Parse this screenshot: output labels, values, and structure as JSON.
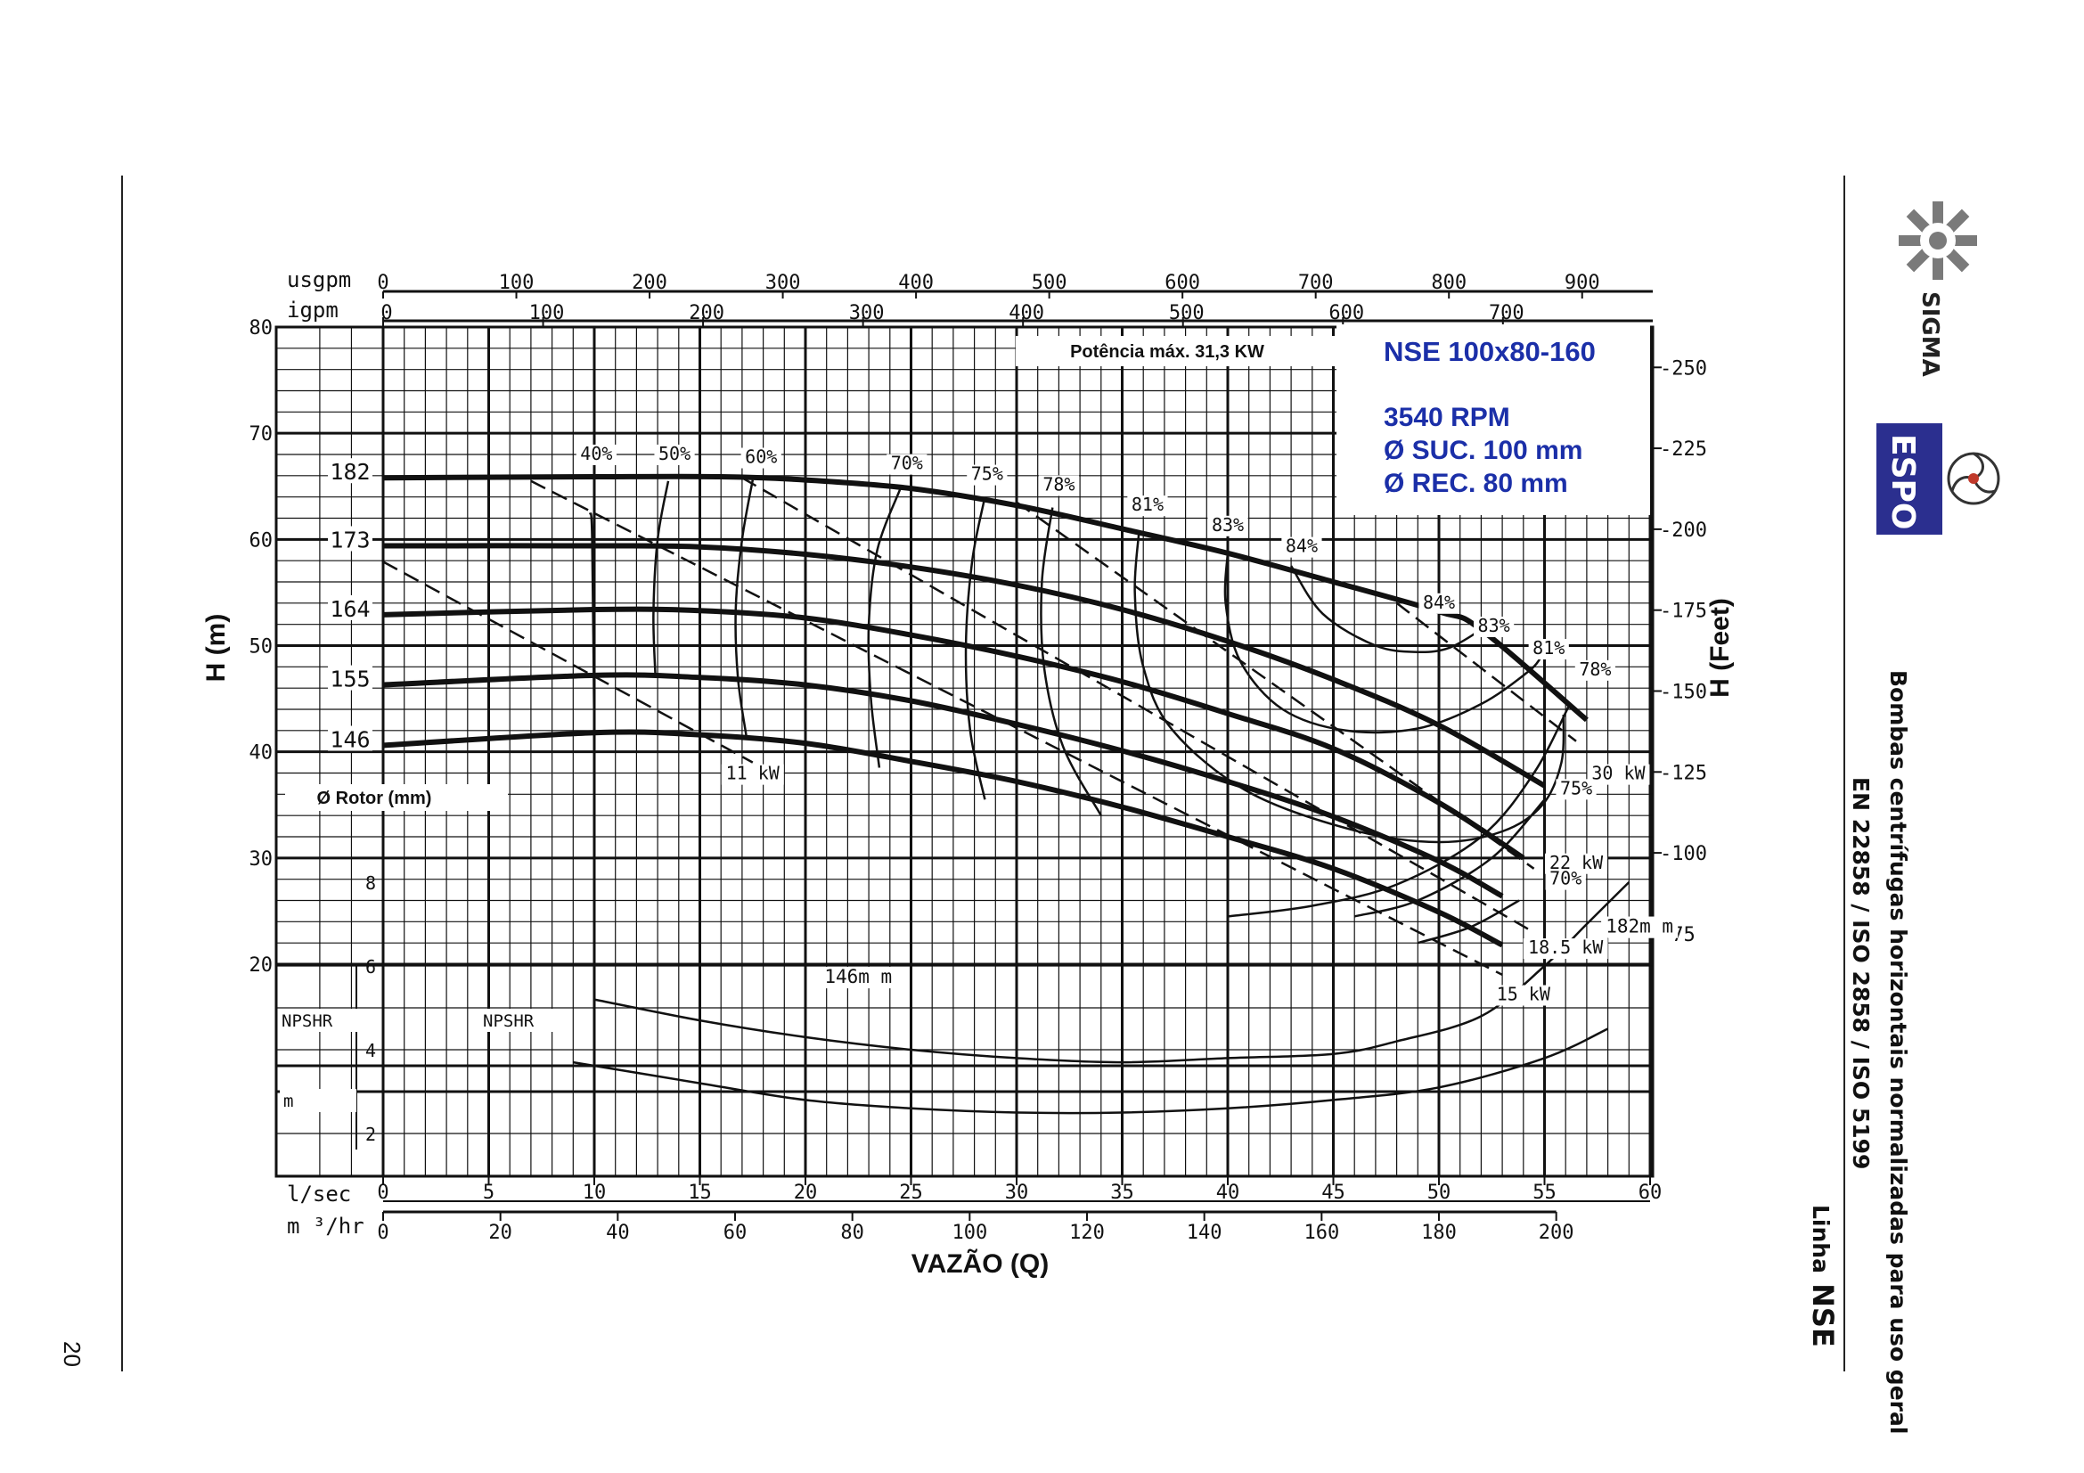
{
  "page": {
    "number": "20"
  },
  "side_text": {
    "line1": "Bombas centrífugas horizontais normalizadas para uso geral",
    "line2": "EN 22858 / ISO 2858 / ISO 5199",
    "line3_prefix": "Linha",
    "line3_model": "NSE"
  },
  "logos": {
    "sigma": "SIGMA",
    "espo": "ESPO"
  },
  "info": {
    "model": "NSE 100x80-160",
    "rpm": "3540 RPM",
    "suction": "Ø SUC. 100 mm",
    "discharge": "Ø REC. 80 mm",
    "max_power": "Potência máx. 31,3 KW",
    "rotor_label": "Ø Rotor (mm)",
    "npshr_label": "NPSHR",
    "npshr_unit": "m",
    "color": "#1b2fa8"
  },
  "chart_data": {
    "type": "line",
    "title": "NSE 100x80-160",
    "xlabel": "VAZÃO (Q)",
    "ylabel_left": "H (m)",
    "ylabel_right": "H (Feet)",
    "x_primary": {
      "unit": "l/sec",
      "range": [
        0,
        60
      ],
      "ticks": [
        "0",
        "5",
        "10",
        "15",
        "20",
        "25",
        "30",
        "35",
        "40",
        "45",
        "50",
        "55",
        "60"
      ]
    },
    "x_m3hr": {
      "unit": "m ³/hr",
      "ticks": [
        "0",
        "20",
        "40",
        "60",
        "80",
        "100",
        "120",
        "140",
        "160",
        "180",
        "200"
      ]
    },
    "x_usgpm": {
      "unit": "usgpm",
      "ticks": [
        "0",
        "100",
        "200",
        "300",
        "400",
        "500",
        "600",
        "700",
        "800",
        "900"
      ]
    },
    "x_igpm": {
      "unit": "igpm",
      "ticks": [
        "0",
        "100",
        "200",
        "300",
        "400",
        "500",
        "600",
        "700"
      ]
    },
    "y_left": {
      "range": [
        20,
        80
      ],
      "ticks": [
        "20",
        "30",
        "40",
        "50",
        "60",
        "70",
        "80"
      ]
    },
    "y_feet": {
      "ticks": [
        "75",
        "100",
        "125",
        "150",
        "175",
        "200",
        "225",
        "250"
      ]
    },
    "npsh_axis": {
      "ticks": [
        "2",
        "4",
        "6",
        "8"
      ]
    },
    "head_series": [
      {
        "name": "182",
        "points": [
          [
            0,
            65.8
          ],
          [
            10,
            65.9
          ],
          [
            16,
            65.9
          ],
          [
            20,
            65.6
          ],
          [
            25,
            64.8
          ],
          [
            30,
            63.2
          ],
          [
            35,
            61.0
          ],
          [
            40,
            58.7
          ],
          [
            45,
            56.0
          ],
          [
            50,
            53.2
          ],
          [
            52,
            51.5
          ],
          [
            57,
            43.0
          ]
        ]
      },
      {
        "name": "173",
        "points": [
          [
            0,
            59.4
          ],
          [
            10,
            59.4
          ],
          [
            15,
            59.3
          ],
          [
            20,
            58.6
          ],
          [
            25,
            57.4
          ],
          [
            30,
            55.7
          ],
          [
            35,
            53.4
          ],
          [
            40,
            50.4
          ],
          [
            45,
            46.8
          ],
          [
            50,
            42.5
          ],
          [
            55,
            36.8
          ]
        ]
      },
      {
        "name": "164",
        "points": [
          [
            0,
            52.9
          ],
          [
            10,
            53.4
          ],
          [
            15,
            53.3
          ],
          [
            20,
            52.6
          ],
          [
            25,
            51.0
          ],
          [
            30,
            49.0
          ],
          [
            35,
            46.6
          ],
          [
            40,
            43.6
          ],
          [
            45,
            40.3
          ],
          [
            50,
            35.2
          ],
          [
            54,
            30.0
          ]
        ]
      },
      {
        "name": "155",
        "points": [
          [
            0,
            46.3
          ],
          [
            10,
            47.2
          ],
          [
            15,
            47.0
          ],
          [
            20,
            46.3
          ],
          [
            25,
            44.8
          ],
          [
            30,
            42.6
          ],
          [
            35,
            40.1
          ],
          [
            40,
            37.2
          ],
          [
            45,
            33.9
          ],
          [
            50,
            29.7
          ],
          [
            53,
            26.4
          ]
        ]
      },
      {
        "name": "146",
        "points": [
          [
            0,
            40.6
          ],
          [
            10,
            41.8
          ],
          [
            15,
            41.6
          ],
          [
            20,
            40.8
          ],
          [
            25,
            39.1
          ],
          [
            30,
            37.2
          ],
          [
            35,
            34.8
          ],
          [
            40,
            32.0
          ],
          [
            45,
            29.0
          ],
          [
            50,
            24.9
          ],
          [
            53,
            21.8
          ]
        ]
      }
    ],
    "power_lines": [
      {
        "name": "11 kW",
        "points": [
          [
            0,
            57.9
          ],
          [
            17.5,
            39.0
          ]
        ]
      },
      {
        "name": "15 kW",
        "points": [
          [
            7,
            65.5
          ],
          [
            53,
            19.0
          ]
        ]
      },
      {
        "name": "18.5 kW",
        "points": [
          [
            17,
            65.8
          ],
          [
            54.5,
            23.0
          ]
        ]
      },
      {
        "name": "22 kW",
        "points": [
          [
            30,
            63.5
          ],
          [
            54.5,
            29.0
          ]
        ]
      },
      {
        "name": "30 kW",
        "points": [
          [
            48,
            54.0
          ],
          [
            56.5,
            41.0
          ]
        ]
      }
    ],
    "efficiency_curves": [
      {
        "name": "40%",
        "points": [
          [
            9.8,
            62.5
          ],
          [
            9.9,
            60.0
          ],
          [
            10.0,
            41.8
          ]
        ]
      },
      {
        "name": "50%",
        "points": [
          [
            13.5,
            65.5
          ],
          [
            13.0,
            60.0
          ],
          [
            12.8,
            53.0
          ],
          [
            12.9,
            47.0
          ]
        ]
      },
      {
        "name": "60%",
        "points": [
          [
            17.5,
            65.6
          ],
          [
            17.0,
            60.0
          ],
          [
            16.7,
            53.5
          ],
          [
            16.8,
            47.0
          ],
          [
            17.2,
            41.5
          ]
        ]
      },
      {
        "name": "70%",
        "points": [
          [
            24.5,
            64.8
          ],
          [
            23.4,
            59.0
          ],
          [
            23.0,
            52.0
          ],
          [
            23.1,
            45.0
          ],
          [
            23.5,
            38.5
          ]
        ]
      },
      {
        "name": "75%",
        "points": [
          [
            28.5,
            64.0
          ],
          [
            27.9,
            58.0
          ],
          [
            27.6,
            50.0
          ],
          [
            27.8,
            42.0
          ],
          [
            28.5,
            35.5
          ]
        ]
      },
      {
        "name": "78%",
        "points": [
          [
            31.7,
            63.0
          ],
          [
            31.2,
            56.0
          ],
          [
            31.3,
            48.0
          ],
          [
            32.2,
            40.5
          ],
          [
            34.0,
            34.0
          ]
        ]
      },
      {
        "name": "81%",
        "points": [
          [
            35.8,
            60.8
          ],
          [
            35.6,
            55.0
          ],
          [
            36.0,
            48.0
          ],
          [
            37.4,
            42.0
          ],
          [
            41.0,
            36.2
          ],
          [
            46.0,
            32.6
          ],
          [
            50.0,
            31.5
          ],
          [
            53.0,
            32.5
          ],
          [
            54.9,
            35.0
          ],
          [
            55.8,
            39.0
          ],
          [
            55.9,
            43.5
          ]
        ]
      },
      {
        "name": "83%",
        "points": [
          [
            40.0,
            58.8
          ],
          [
            39.9,
            54.0
          ],
          [
            40.6,
            48.5
          ],
          [
            42.6,
            44.0
          ],
          [
            45.6,
            42.0
          ],
          [
            49.0,
            42.2
          ],
          [
            52.0,
            44.5
          ],
          [
            54.2,
            47.5
          ],
          [
            54.8,
            48.8
          ]
        ]
      },
      {
        "name": "84%",
        "points": [
          [
            43.0,
            57.5
          ],
          [
            44.5,
            53.0
          ],
          [
            47.0,
            50.0
          ],
          [
            49.0,
            49.4
          ],
          [
            50.5,
            49.8
          ],
          [
            52.0,
            51.5
          ]
        ]
      },
      {
        "name": "78% (lower)",
        "points": [
          [
            56.2,
            44.5
          ],
          [
            54.5,
            38.0
          ],
          [
            52.0,
            32.0
          ],
          [
            48.0,
            27.5
          ],
          [
            44.0,
            25.5
          ],
          [
            40.0,
            24.5
          ]
        ]
      },
      {
        "name": "75% (lower)",
        "points": [
          [
            55.0,
            35.5
          ],
          [
            52.5,
            30.0
          ],
          [
            49.0,
            26.0
          ],
          [
            46.0,
            24.5
          ]
        ]
      },
      {
        "name": "70% (lower)",
        "points": [
          [
            53.8,
            26.0
          ],
          [
            51.5,
            23.5
          ],
          [
            49.0,
            22.0
          ]
        ]
      }
    ],
    "npshr_curves": [
      {
        "name": "146m m",
        "points_m": [
          [
            9,
            3.7
          ],
          [
            15,
            3.2
          ],
          [
            20,
            2.8
          ],
          [
            25,
            2.6
          ],
          [
            30,
            2.5
          ],
          [
            35,
            2.5
          ],
          [
            40,
            2.6
          ],
          [
            45,
            2.8
          ],
          [
            50,
            3.1
          ],
          [
            55,
            3.8
          ],
          [
            58,
            4.5
          ]
        ]
      },
      {
        "name": "182m m",
        "points_m": [
          [
            10,
            5.2
          ],
          [
            15,
            4.7
          ],
          [
            20,
            4.3
          ],
          [
            25,
            4.0
          ],
          [
            30,
            3.8
          ],
          [
            35,
            3.7
          ],
          [
            40,
            3.8
          ],
          [
            45,
            3.9
          ],
          [
            48,
            4.2
          ],
          [
            52,
            4.8
          ],
          [
            55,
            6.0
          ],
          [
            57,
            7.0
          ],
          [
            59,
            8.0
          ]
        ]
      }
    ],
    "labels": {
      "efficiency": [
        {
          "text": "40%",
          "x": 10.1,
          "y": 67.5
        },
        {
          "text": "50%",
          "x": 13.8,
          "y": 67.5
        },
        {
          "text": "60%",
          "x": 17.9,
          "y": 67.2
        },
        {
          "text": "70%",
          "x": 24.8,
          "y": 66.6
        },
        {
          "text": "75%",
          "x": 28.6,
          "y": 65.6
        },
        {
          "text": "78%",
          "x": 32.0,
          "y": 64.6
        },
        {
          "text": "81%",
          "x": 36.2,
          "y": 62.7
        },
        {
          "text": "83%",
          "x": 40.0,
          "y": 60.8
        },
        {
          "text": "84%",
          "x": 43.5,
          "y": 58.8
        },
        {
          "text": "84%",
          "x": 50.0,
          "y": 53.5
        },
        {
          "text": "83%",
          "x": 52.6,
          "y": 51.3
        },
        {
          "text": "81%",
          "x": 55.2,
          "y": 49.2
        },
        {
          "text": "78%",
          "x": 57.4,
          "y": 47.2
        },
        {
          "text": "75%",
          "x": 56.5,
          "y": 36.0
        },
        {
          "text": "70%",
          "x": 56.0,
          "y": 27.5
        }
      ],
      "power": [
        {
          "text": "11 kW",
          "x": 17.5,
          "y": 37.4
        },
        {
          "text": "15 kW",
          "x": 54.0,
          "y": 16.6
        },
        {
          "text": "18.5 kW",
          "x": 56.0,
          "y": 21.0
        },
        {
          "text": "22 kW",
          "x": 56.5,
          "y": 29.0
        },
        {
          "text": "30 kW",
          "x": 58.5,
          "y": 37.4
        }
      ],
      "rotor": [
        {
          "text": "182",
          "x": 0,
          "y": 65.8
        },
        {
          "text": "173",
          "x": 0,
          "y": 59.4
        },
        {
          "text": "164",
          "x": 0,
          "y": 52.9
        },
        {
          "text": "155",
          "x": 0,
          "y": 46.3
        },
        {
          "text": "146",
          "x": 0,
          "y": 40.6
        }
      ],
      "npshr": [
        {
          "text": "146m m",
          "x": 22.5,
          "y_m": 5.6
        },
        {
          "text": "182m m",
          "x": 59.5,
          "y_m": 6.8
        }
      ]
    }
  }
}
